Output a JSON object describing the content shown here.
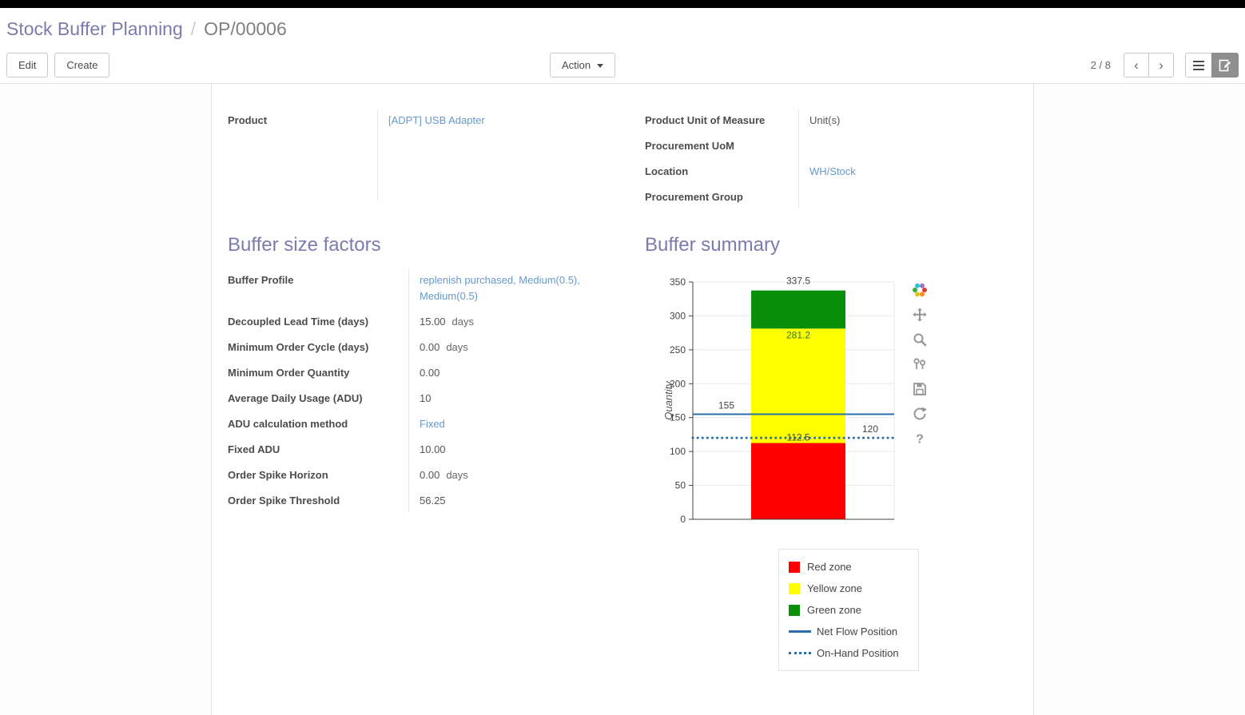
{
  "colors": {
    "topbar": "#000000",
    "accent_purple": "#7c7bad",
    "link_blue": "#6699cc",
    "red_zone": "#ff0000",
    "yellow_zone": "#ffff00",
    "green_zone": "#0a8f0a",
    "flow_line_blue": "#2a6fa8"
  },
  "breadcrumb": {
    "parent": "Stock Buffer Planning",
    "separator": "/",
    "current": "OP/00006"
  },
  "control_panel": {
    "edit_label": "Edit",
    "create_label": "Create",
    "action_label": "Action",
    "pager": "2 / 8",
    "pager_prev": "‹",
    "pager_next": "›"
  },
  "sheet": {
    "fields_left": [
      {
        "label": "Product",
        "value": "[ADPT] USB Adapter",
        "link": true
      }
    ],
    "fields_right": [
      {
        "label": "Product Unit of Measure",
        "value": "Unit(s)"
      },
      {
        "label": "Procurement UoM",
        "value": ""
      },
      {
        "label": "Location",
        "value": "WH/Stock",
        "link": true
      },
      {
        "label": "Procurement Group",
        "value": ""
      }
    ],
    "buffer_factors": {
      "title": "Buffer size factors",
      "rows": [
        {
          "label": "Buffer Profile",
          "value": "replenish purchased, Medium(0.5), Medium(0.5)",
          "link": true
        },
        {
          "label": "Decoupled Lead Time (days)",
          "value": "15.00",
          "suffix": "days"
        },
        {
          "label": "Minimum Order Cycle (days)",
          "value": "0.00",
          "suffix": "days"
        },
        {
          "label": "Minimum Order Quantity",
          "value": "0.00"
        },
        {
          "label": "Average Daily Usage (ADU)",
          "value": "10"
        },
        {
          "label": "ADU calculation method",
          "value": "Fixed",
          "link": true
        },
        {
          "label": "Fixed ADU",
          "value": "10.00"
        },
        {
          "label": "Order Spike Horizon",
          "value": "0.00",
          "suffix": "days"
        },
        {
          "label": "Order Spike Threshold",
          "value": "56.25"
        }
      ]
    },
    "buffer_summary": {
      "title": "Buffer summary"
    }
  },
  "chart_data": {
    "type": "bar",
    "stacked": true,
    "title": "",
    "xlabel": "",
    "ylabel": "Quantity",
    "ylim": [
      0,
      350
    ],
    "yticks": [
      0,
      50,
      100,
      150,
      200,
      250,
      300,
      350
    ],
    "grid": true,
    "legend_position": "bottom-right",
    "series": [
      {
        "name": "Red zone",
        "values": [
          112.5
        ],
        "color": "#ff0000"
      },
      {
        "name": "Yellow zone",
        "values": [
          168.75
        ],
        "color": "#ffff00"
      },
      {
        "name": "Green zone",
        "values": [
          56.25
        ],
        "color": "#0a8f0a"
      }
    ],
    "zone_boundaries": {
      "red_top": 112.5,
      "yellow_top": 281.25,
      "green_top": 337.5
    },
    "lines": [
      {
        "name": "Net Flow Position",
        "value": 155,
        "style": "solid",
        "color": "#2a6fa8"
      },
      {
        "name": "On-Hand Position",
        "value": 120,
        "style": "dotted",
        "color": "#2a6fa8"
      }
    ],
    "annotations": [
      {
        "text": "337.5",
        "y": 337.5,
        "x": "bar",
        "dy": -8,
        "color": "#444444"
      },
      {
        "text": "281.2",
        "y": 281.25,
        "x": "bar",
        "dy": 12,
        "color": "#2d7a2d"
      },
      {
        "text": "155",
        "y": 155,
        "x": "left",
        "dy": -7,
        "color": "#444444"
      },
      {
        "text": "112.5",
        "y": 112.5,
        "x": "bar",
        "dy": -3,
        "color": "#444444"
      },
      {
        "text": "120",
        "y": 120,
        "x": "right",
        "dy": -7,
        "color": "#444444"
      }
    ],
    "legend": [
      {
        "label": "Red zone",
        "swatch": "square",
        "color": "#ff0000"
      },
      {
        "label": "Yellow zone",
        "swatch": "square",
        "color": "#ffff00"
      },
      {
        "label": "Green zone",
        "swatch": "square",
        "color": "#0a8f0a"
      },
      {
        "label": "Net Flow Position",
        "swatch": "line",
        "color": "#2a6fa8"
      },
      {
        "label": "On-Hand Position",
        "swatch": "dotted-line",
        "color": "#2a6fa8"
      }
    ]
  },
  "chart_toolbar": {
    "icons": [
      "plotly-logo-icon",
      "pan-icon",
      "zoom-icon",
      "hover-icon",
      "save-icon",
      "reset-icon",
      "help-icon"
    ]
  }
}
